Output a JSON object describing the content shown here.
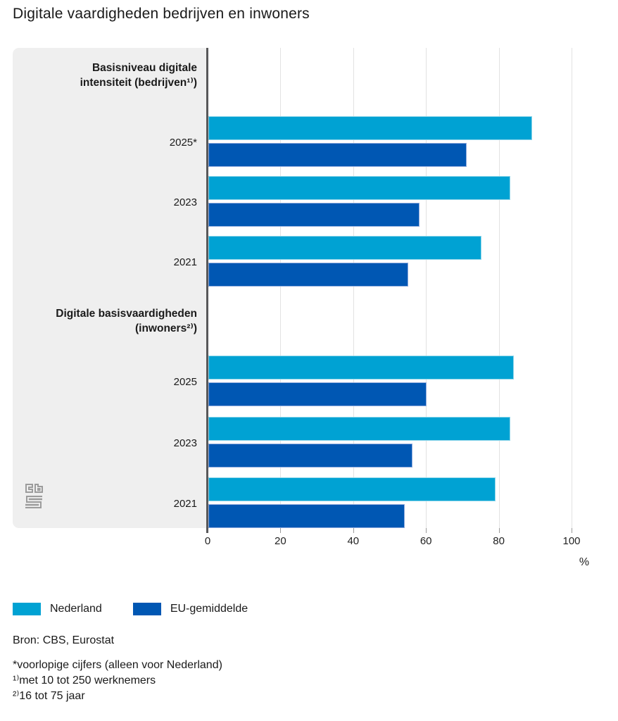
{
  "title": "Digitale vaardigheden bedrijven en inwoners",
  "colors": {
    "nederland": "#00a2d3",
    "eu": "#0057b3",
    "panel": "#efefef",
    "axis": "#58585a",
    "grid": "#e2e2e2"
  },
  "axis": {
    "ticks": [
      0,
      20,
      40,
      60,
      80,
      100
    ],
    "unit": "%"
  },
  "legend": [
    {
      "label": "Nederland",
      "color": "#00a2d3"
    },
    {
      "label": "EU-gemiddelde",
      "color": "#0057b3"
    }
  ],
  "source": "Bron: CBS, Eurostat",
  "footnotes": [
    "*voorlopige cijfers (alleen voor Nederland)",
    "¹⁾met 10 tot 250 werknemers",
    "²⁾16 tot 75 jaar"
  ],
  "chart_data": {
    "type": "bar",
    "orientation": "horizontal",
    "title": "Digitale vaardigheden bedrijven en inwoners",
    "unit": "%",
    "xlim": [
      0,
      100
    ],
    "grid": true,
    "legend_position": "bottom",
    "series_names": [
      "Nederland",
      "EU-gemiddelde"
    ],
    "groups": [
      {
        "label": "Basisniveau digitale intensiteit (bedrijven¹⁾)",
        "label_lines": [
          "Basisniveau digitale",
          "intensiteit (bedrijven¹⁾)"
        ],
        "rows": [
          {
            "category": "2025*",
            "nederland": 89,
            "eu": 71
          },
          {
            "category": "2023",
            "nederland": 83,
            "eu": 58
          },
          {
            "category": "2021",
            "nederland": 75,
            "eu": 55
          }
        ]
      },
      {
        "label": "Digitale basisvaardigheden (inwoners²⁾)",
        "label_lines": [
          "Digitale basisvaardigheden",
          "(inwoners²⁾)"
        ],
        "rows": [
          {
            "category": "2025",
            "nederland": 84,
            "eu": 60
          },
          {
            "category": "2023",
            "nederland": 83,
            "eu": 56
          },
          {
            "category": "2021",
            "nederland": 79,
            "eu": 54
          }
        ]
      }
    ]
  }
}
